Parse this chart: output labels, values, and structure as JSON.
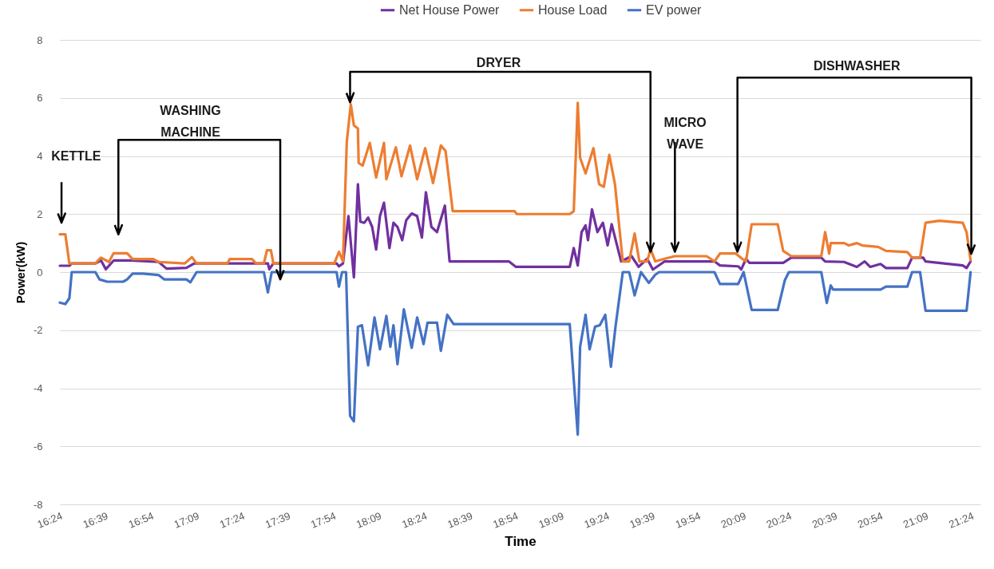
{
  "chart_data": {
    "type": "line",
    "xlabel": "Time",
    "ylabel": "Power(kW)",
    "xlim": [
      16.4,
      21.45
    ],
    "ylim": [
      -8,
      8
    ],
    "xticks": [
      {
        "value": 16.4,
        "label": "16:24"
      },
      {
        "value": 16.65,
        "label": "16:39"
      },
      {
        "value": 16.9,
        "label": "16:54"
      },
      {
        "value": 17.15,
        "label": "17:09"
      },
      {
        "value": 17.4,
        "label": "17:24"
      },
      {
        "value": 17.65,
        "label": "17:39"
      },
      {
        "value": 17.9,
        "label": "17:54"
      },
      {
        "value": 18.15,
        "label": "18:09"
      },
      {
        "value": 18.4,
        "label": "18:24"
      },
      {
        "value": 18.65,
        "label": "18:39"
      },
      {
        "value": 18.9,
        "label": "18:54"
      },
      {
        "value": 19.15,
        "label": "19:09"
      },
      {
        "value": 19.4,
        "label": "19:24"
      },
      {
        "value": 19.65,
        "label": "19:39"
      },
      {
        "value": 19.9,
        "label": "19:54"
      },
      {
        "value": 20.15,
        "label": "20:09"
      },
      {
        "value": 20.4,
        "label": "20:24"
      },
      {
        "value": 20.65,
        "label": "20:39"
      },
      {
        "value": 20.9,
        "label": "20:54"
      },
      {
        "value": 21.15,
        "label": "21:09"
      },
      {
        "value": 21.4,
        "label": "21:24"
      }
    ],
    "yticks": [
      -8,
      -6,
      -4,
      -2,
      0,
      2,
      4,
      6,
      8
    ],
    "grid": "y",
    "legend": "top",
    "series": [
      {
        "name": "Net House Power",
        "color": "#7030a0",
        "x": [
          16.4,
          16.452,
          16.465,
          16.595,
          16.626,
          16.652,
          16.695,
          16.79,
          16.942,
          16.985,
          17.094,
          17.137,
          17.541,
          17.549,
          17.571,
          17.918,
          17.931,
          17.953,
          17.983,
          18.013,
          18.035,
          18.048,
          18.07,
          18.091,
          18.113,
          18.135,
          18.156,
          18.178,
          18.208,
          18.23,
          18.252,
          18.278,
          18.3,
          18.33,
          18.36,
          18.386,
          18.408,
          18.438,
          18.469,
          18.512,
          18.538,
          18.863,
          18.902,
          19.197,
          19.219,
          19.241,
          19.262,
          19.284,
          19.297,
          19.319,
          19.349,
          19.379,
          19.405,
          19.427,
          19.479,
          19.536,
          19.575,
          19.622,
          19.653,
          19.718,
          19.991,
          20.021,
          20.121,
          20.138,
          20.164,
          20.182,
          20.368,
          20.412,
          20.577,
          20.598,
          20.702,
          20.772,
          20.815,
          20.845,
          20.902,
          20.932,
          21.049,
          21.075,
          21.136,
          21.149,
          21.353,
          21.374,
          21.396
        ],
        "values": [
          0.22,
          0.22,
          0.3,
          0.3,
          0.4,
          0.1,
          0.4,
          0.4,
          0.35,
          0.12,
          0.15,
          0.3,
          0.3,
          0.1,
          0.3,
          0.3,
          0.2,
          0.3,
          1.93,
          -0.18,
          3.03,
          1.74,
          1.7,
          1.88,
          1.56,
          0.78,
          1.93,
          2.39,
          0.83,
          1.7,
          1.56,
          1.1,
          1.79,
          2.02,
          1.93,
          1.19,
          2.75,
          1.56,
          1.38,
          2.29,
          0.37,
          0.37,
          0.18,
          0.18,
          0.83,
          0.23,
          1.38,
          1.61,
          1.1,
          2.16,
          1.38,
          1.7,
          0.92,
          1.65,
          0.37,
          0.55,
          0.18,
          0.46,
          0.09,
          0.37,
          0.37,
          0.23,
          0.2,
          0.09,
          0.46,
          0.32,
          0.32,
          0.5,
          0.5,
          0.37,
          0.35,
          0.18,
          0.37,
          0.18,
          0.28,
          0.14,
          0.14,
          0.5,
          0.5,
          0.37,
          0.23,
          0.14,
          0.37
        ]
      },
      {
        "name": "House Load",
        "color": "#ed7d31",
        "x": [
          16.4,
          16.43,
          16.452,
          16.595,
          16.617,
          16.626,
          16.669,
          16.695,
          16.769,
          16.799,
          16.912,
          16.942,
          17.085,
          17.124,
          17.15,
          17.319,
          17.332,
          17.454,
          17.476,
          17.519,
          17.536,
          17.558,
          17.571,
          17.905,
          17.931,
          17.953,
          17.974,
          17.996,
          18.013,
          18.035,
          18.039,
          18.061,
          18.1,
          18.135,
          18.178,
          18.191,
          18.243,
          18.274,
          18.321,
          18.36,
          18.404,
          18.447,
          18.49,
          18.516,
          18.555,
          18.894,
          18.907,
          19.197,
          19.219,
          19.241,
          19.254,
          19.284,
          19.327,
          19.358,
          19.384,
          19.414,
          19.445,
          19.488,
          19.523,
          19.553,
          19.579,
          19.622,
          19.64,
          19.666,
          19.718,
          19.774,
          19.948,
          19.991,
          20.021,
          20.108,
          20.143,
          20.164,
          20.195,
          20.338,
          20.368,
          20.412,
          20.577,
          20.598,
          20.62,
          20.629,
          20.702,
          20.728,
          20.772,
          20.802,
          20.889,
          20.932,
          21.049,
          21.075,
          21.119,
          21.149,
          21.223,
          21.353,
          21.374,
          21.396
        ],
        "values": [
          1.3,
          1.3,
          0.3,
          0.3,
          0.45,
          0.5,
          0.35,
          0.65,
          0.65,
          0.45,
          0.45,
          0.35,
          0.3,
          0.52,
          0.3,
          0.3,
          0.45,
          0.45,
          0.3,
          0.3,
          0.75,
          0.75,
          0.3,
          0.3,
          0.7,
          0.37,
          4.5,
          5.78,
          5.05,
          4.95,
          3.76,
          3.67,
          4.45,
          3.26,
          4.45,
          3.2,
          4.3,
          3.3,
          4.36,
          3.2,
          4.27,
          3.07,
          4.36,
          4.17,
          2.1,
          2.1,
          2.0,
          2.0,
          2.1,
          5.83,
          3.94,
          3.4,
          4.27,
          3.03,
          2.94,
          4.04,
          3.03,
          0.37,
          0.37,
          1.33,
          0.37,
          0.37,
          0.8,
          0.37,
          0.46,
          0.55,
          0.55,
          0.37,
          0.64,
          0.64,
          0.46,
          0.37,
          1.65,
          1.65,
          0.73,
          0.55,
          0.55,
          1.38,
          0.64,
          1.0,
          1.0,
          0.92,
          1.0,
          0.92,
          0.87,
          0.73,
          0.69,
          0.5,
          0.5,
          1.7,
          1.77,
          1.7,
          1.38,
          0.41
        ]
      },
      {
        "name": "EV power",
        "color": "#4472c4",
        "x": [
          16.4,
          16.43,
          16.452,
          16.465,
          16.595,
          16.617,
          16.66,
          16.747,
          16.769,
          16.799,
          16.855,
          16.942,
          16.972,
          17.094,
          17.116,
          17.15,
          17.519,
          17.541,
          17.562,
          17.918,
          17.931,
          17.948,
          17.97,
          17.992,
          18.013,
          18.035,
          18.057,
          18.091,
          18.126,
          18.156,
          18.191,
          18.213,
          18.23,
          18.252,
          18.287,
          18.33,
          18.36,
          18.395,
          18.417,
          18.469,
          18.49,
          18.525,
          18.56,
          19.197,
          19.241,
          19.254,
          19.284,
          19.306,
          19.336,
          19.362,
          19.392,
          19.423,
          19.449,
          19.488,
          19.523,
          19.553,
          19.588,
          19.631,
          19.666,
          19.687,
          19.991,
          20.021,
          20.121,
          20.151,
          20.195,
          20.338,
          20.377,
          20.399,
          20.577,
          20.607,
          20.629,
          20.642,
          20.902,
          20.932,
          21.049,
          21.075,
          21.119,
          21.149,
          21.374,
          21.396
        ],
        "values": [
          -1.05,
          -1.1,
          -0.9,
          0,
          0,
          -0.25,
          -0.33,
          -0.33,
          -0.25,
          -0.05,
          -0.05,
          -0.1,
          -0.25,
          -0.25,
          -0.35,
          0,
          0,
          -0.7,
          0,
          0,
          -0.5,
          0,
          0,
          -4.95,
          -5.14,
          -1.88,
          -1.83,
          -3.21,
          -1.56,
          -2.66,
          -1.51,
          -2.57,
          -1.83,
          -3.17,
          -1.28,
          -2.61,
          -1.56,
          -2.48,
          -1.74,
          -1.74,
          -2.71,
          -1.47,
          -1.79,
          -1.79,
          -5.6,
          -2.57,
          -1.47,
          -2.66,
          -1.88,
          -1.83,
          -1.47,
          -3.26,
          -1.83,
          0,
          0,
          -0.8,
          0,
          -0.37,
          -0.09,
          0,
          0,
          -0.41,
          -0.41,
          0,
          -1.3,
          -1.3,
          -0.28,
          0,
          0,
          -1.06,
          -0.46,
          -0.6,
          -0.6,
          -0.5,
          -0.5,
          0,
          0,
          -1.33,
          -1.33,
          0
        ]
      }
    ],
    "annotations": [
      "KETTLE",
      "WASHING MACHINE",
      "DRYER",
      "MICRO WAVE",
      "DISHWASHER"
    ]
  }
}
